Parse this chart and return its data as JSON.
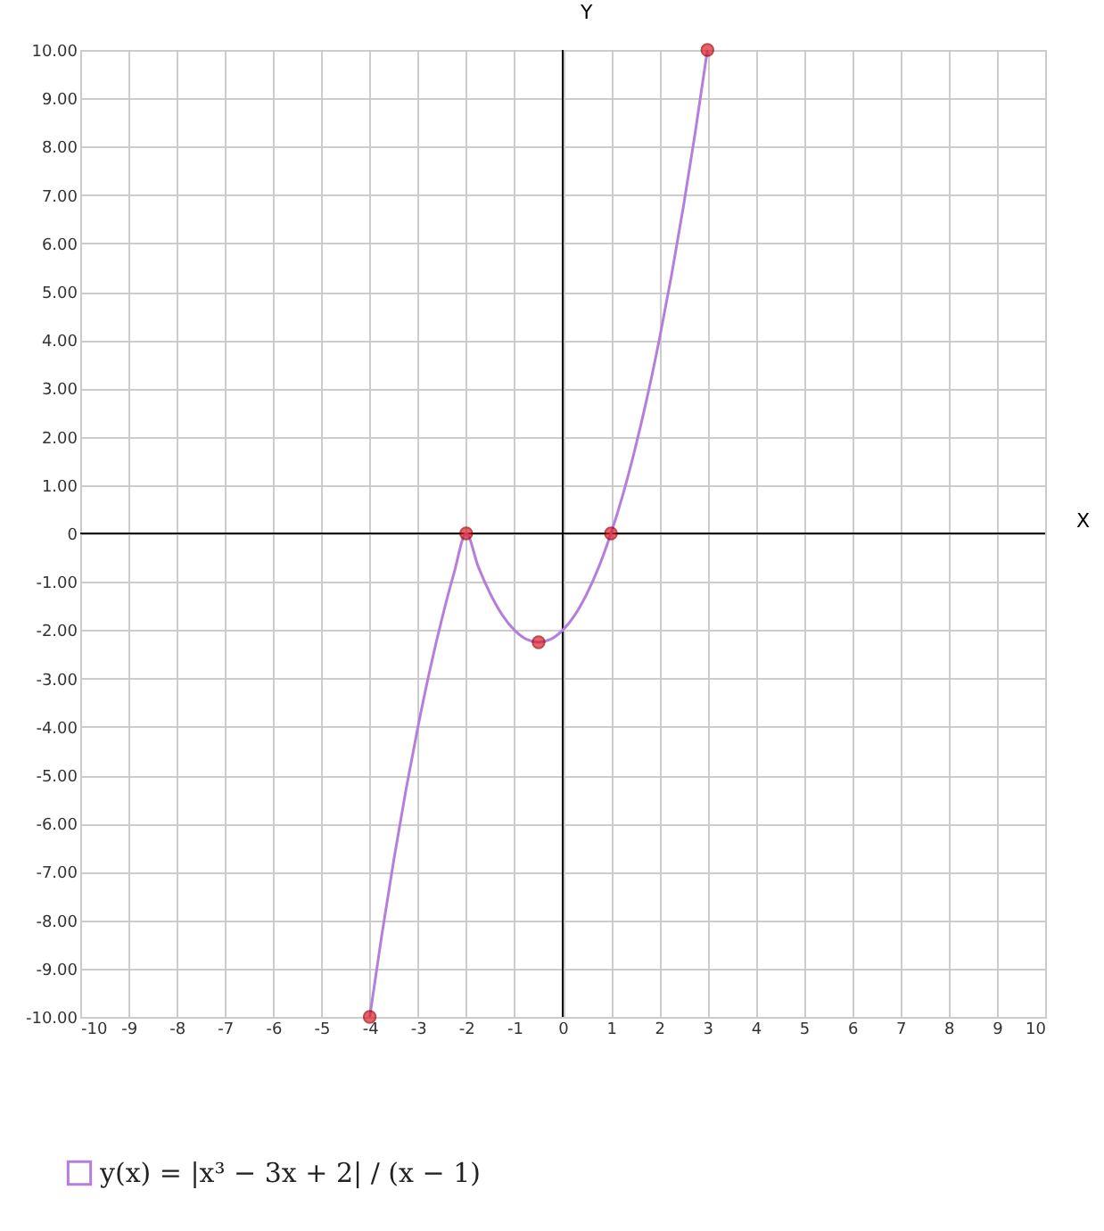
{
  "chart_data": {
    "type": "line",
    "xlabel": "X",
    "ylabel": "Y",
    "xlim": [
      -10,
      10
    ],
    "ylim": [
      -10,
      10
    ],
    "xticks": [
      -10,
      -9,
      -8,
      -7,
      -6,
      -5,
      -4,
      -3,
      -2,
      -1,
      0,
      1,
      2,
      3,
      4,
      5,
      6,
      7,
      8,
      9,
      10
    ],
    "yticks": [
      {
        "value": -10,
        "label": "-10.00"
      },
      {
        "value": -9,
        "label": "-9.00"
      },
      {
        "value": -8,
        "label": "-8.00"
      },
      {
        "value": -7,
        "label": "-7.00"
      },
      {
        "value": -6,
        "label": "-6.00"
      },
      {
        "value": -5,
        "label": "-5.00"
      },
      {
        "value": -4,
        "label": "-4.00"
      },
      {
        "value": -3,
        "label": "-3.00"
      },
      {
        "value": -2,
        "label": "-2.00"
      },
      {
        "value": -1,
        "label": "-1.00"
      },
      {
        "value": 0,
        "label": "0"
      },
      {
        "value": 1,
        "label": "1.00"
      },
      {
        "value": 2,
        "label": "2.00"
      },
      {
        "value": 3,
        "label": "3.00"
      },
      {
        "value": 4,
        "label": "4.00"
      },
      {
        "value": 5,
        "label": "5.00"
      },
      {
        "value": 6,
        "label": "6.00"
      },
      {
        "value": 7,
        "label": "7.00"
      },
      {
        "value": 8,
        "label": "8.00"
      },
      {
        "value": 9,
        "label": "9.00"
      },
      {
        "value": 10,
        "label": "10.00"
      }
    ],
    "grid": true,
    "legend": "bottom left",
    "series": [
      {
        "name": "y(x) = |x³ − 3x + 2| / (x − 1)",
        "type": "line",
        "color": "#b57edc",
        "marker": "none",
        "x": [
          -4,
          -3.75,
          -3.5,
          -3.25,
          -3,
          -2.75,
          -2.5,
          -2.25,
          -2,
          -1.75,
          -1.5,
          -1.25,
          -1,
          -0.75,
          -0.5,
          -0.25,
          0,
          0.25,
          0.5,
          0.75,
          1,
          1.25,
          1.5,
          1.75,
          2,
          2.25,
          2.5,
          2.75,
          3
        ],
        "values": [
          -10,
          -8.31,
          -6.75,
          -5.31,
          -4,
          -2.81,
          -1.75,
          -0.81,
          0,
          -0.69,
          -1.25,
          -1.69,
          -2,
          -2.19,
          -2.25,
          -2.19,
          -2,
          -1.69,
          -1.25,
          -0.69,
          0,
          0.81,
          1.75,
          2.81,
          4,
          5.31,
          6.75,
          8.31,
          10
        ]
      },
      {
        "type": "scatter",
        "color": "#e0202a",
        "marker": "circle",
        "x": [
          -4,
          -2,
          -0.5,
          1,
          3
        ],
        "values": [
          -10,
          0,
          -2.25,
          0,
          10
        ]
      }
    ]
  }
}
